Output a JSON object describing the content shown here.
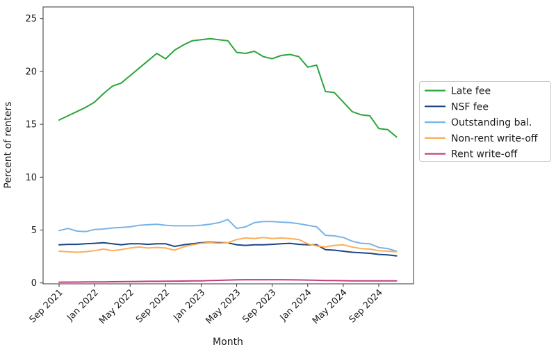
{
  "chart_data": {
    "type": "line",
    "title": "",
    "xlabel": "Month",
    "ylabel": "Percent of renters",
    "grid": false,
    "legend_position": "center right outside",
    "y_ticks": [
      0,
      5,
      10,
      15,
      20,
      25
    ],
    "ylim": [
      -0.1,
      26.1
    ],
    "x_tick_indices": [
      0,
      4,
      8,
      12,
      16,
      20,
      24,
      28,
      32,
      36
    ],
    "x_tick_labels": [
      "Sep 2021",
      "Jan 2022",
      "May 2022",
      "Sep 2022",
      "Jan 2023",
      "May 2023",
      "Sep 2023",
      "Jan 2024",
      "May 2024",
      "Sep 2024"
    ],
    "categories": [
      "Sep 2021",
      "Oct 2021",
      "Nov 2021",
      "Dec 2021",
      "Jan 2022",
      "Feb 2022",
      "Mar 2022",
      "Apr 2022",
      "May 2022",
      "Jun 2022",
      "Jul 2022",
      "Aug 2022",
      "Sep 2022",
      "Oct 2022",
      "Nov 2022",
      "Dec 2022",
      "Jan 2023",
      "Feb 2023",
      "Mar 2023",
      "Apr 2023",
      "May 2023",
      "Jun 2023",
      "Jul 2023",
      "Aug 2023",
      "Sep 2023",
      "Oct 2023",
      "Nov 2023",
      "Dec 2023",
      "Jan 2024",
      "Feb 2024",
      "Mar 2024",
      "Apr 2024",
      "May 2024",
      "Jun 2024",
      "Jul 2024",
      "Aug 2024",
      "Sep 2024",
      "Oct 2024",
      "Nov 2024"
    ],
    "series": [
      {
        "name": "Late fee",
        "color": "#2aa53a",
        "values": [
          15.4,
          15.8,
          16.2,
          16.6,
          17.1,
          17.9,
          18.6,
          18.9,
          19.6,
          20.3,
          21.0,
          21.7,
          21.2,
          22.0,
          22.5,
          22.9,
          23.0,
          23.1,
          23.0,
          22.9,
          21.8,
          21.7,
          21.9,
          21.4,
          21.2,
          21.5,
          21.6,
          21.4,
          20.4,
          20.6,
          18.1,
          18.0,
          17.1,
          16.2,
          15.9,
          15.8,
          14.6,
          14.5,
          13.8
        ]
      },
      {
        "name": "NSF fee",
        "color": "#1c4587",
        "values": [
          3.6,
          3.65,
          3.65,
          3.7,
          3.75,
          3.8,
          3.7,
          3.6,
          3.7,
          3.7,
          3.65,
          3.7,
          3.7,
          3.45,
          3.6,
          3.7,
          3.8,
          3.85,
          3.8,
          3.8,
          3.6,
          3.55,
          3.6,
          3.6,
          3.65,
          3.7,
          3.75,
          3.65,
          3.6,
          3.6,
          3.15,
          3.1,
          3.0,
          2.9,
          2.85,
          2.8,
          2.7,
          2.65,
          2.55
        ]
      },
      {
        "name": "Outstanding bal.",
        "color": "#79b3e6",
        "values": [
          4.95,
          5.15,
          4.9,
          4.85,
          5.05,
          5.1,
          5.2,
          5.25,
          5.3,
          5.45,
          5.5,
          5.55,
          5.45,
          5.4,
          5.4,
          5.4,
          5.45,
          5.55,
          5.7,
          6.0,
          5.15,
          5.3,
          5.7,
          5.8,
          5.8,
          5.75,
          5.7,
          5.6,
          5.45,
          5.3,
          4.5,
          4.45,
          4.3,
          3.95,
          3.75,
          3.7,
          3.35,
          3.25,
          3.0
        ]
      },
      {
        "name": "Non-rent write-off",
        "color": "#fcae55",
        "values": [
          3.0,
          2.95,
          2.9,
          2.95,
          3.05,
          3.2,
          3.05,
          3.15,
          3.3,
          3.4,
          3.3,
          3.35,
          3.3,
          3.1,
          3.4,
          3.6,
          3.75,
          3.8,
          3.75,
          3.8,
          4.1,
          4.25,
          4.2,
          4.3,
          4.2,
          4.25,
          4.2,
          4.1,
          3.7,
          3.5,
          3.4,
          3.55,
          3.6,
          3.4,
          3.25,
          3.2,
          3.05,
          3.0,
          2.95
        ]
      },
      {
        "name": "Rent write-off",
        "color": "#c23b80",
        "values": [
          0.07,
          0.08,
          0.08,
          0.09,
          0.1,
          0.1,
          0.11,
          0.12,
          0.13,
          0.14,
          0.15,
          0.15,
          0.16,
          0.17,
          0.18,
          0.19,
          0.2,
          0.22,
          0.24,
          0.27,
          0.29,
          0.3,
          0.3,
          0.3,
          0.3,
          0.3,
          0.29,
          0.28,
          0.27,
          0.25,
          0.23,
          0.22,
          0.21,
          0.2,
          0.2,
          0.2,
          0.2,
          0.2,
          0.2
        ]
      }
    ]
  },
  "style": {
    "spine_color": "#333333",
    "text_color": "#1a1a1a",
    "legend_border_color": "#c8c8c8",
    "background": "#ffffff"
  }
}
